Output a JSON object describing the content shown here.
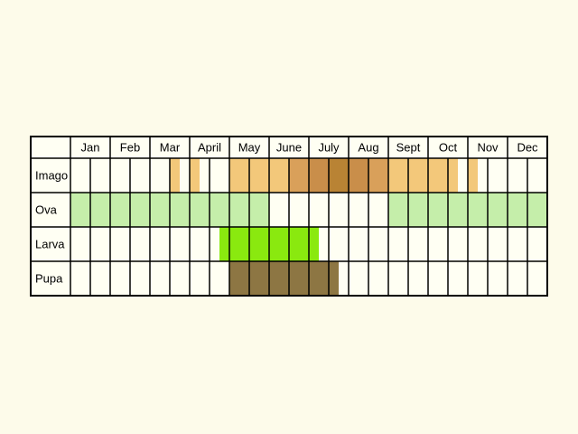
{
  "months": [
    "Jan",
    "Feb",
    "Mar",
    "April",
    "May",
    "June",
    "July",
    "Aug",
    "Sept",
    "Oct",
    "Nov",
    "Dec"
  ],
  "stages": [
    {
      "label": "Imago",
      "segments": [
        {
          "from": 5,
          "to": 5.5,
          "color": "#f3c87a"
        },
        {
          "from": 6,
          "to": 6.5,
          "color": "#f3c87a"
        },
        {
          "from": 8,
          "to": 11,
          "color": "#f3c87a"
        },
        {
          "from": 11,
          "to": 12,
          "color": "#d9a05a"
        },
        {
          "from": 12,
          "to": 13,
          "color": "#c98e4a"
        },
        {
          "from": 13,
          "to": 14,
          "color": "#b98334"
        },
        {
          "from": 14,
          "to": 15,
          "color": "#c98e4a"
        },
        {
          "from": 15,
          "to": 16,
          "color": "#d9a05a"
        },
        {
          "from": 16,
          "to": 19,
          "color": "#f3c87a"
        },
        {
          "from": 19,
          "to": 19.5,
          "color": "#f3c87a"
        },
        {
          "from": 20,
          "to": 20.5,
          "color": "#f3c87a"
        }
      ]
    },
    {
      "label": "Ova",
      "segments": [
        {
          "from": 0,
          "to": 10,
          "color": "#c5eeaa"
        },
        {
          "from": 16,
          "to": 24,
          "color": "#c5eeaa"
        }
      ]
    },
    {
      "label": "Larva",
      "segments": [
        {
          "from": 7.5,
          "to": 12.5,
          "color": "#8ae90f"
        }
      ]
    },
    {
      "label": "Pupa",
      "segments": [
        {
          "from": 8,
          "to": 13.5,
          "color": "#8d7643"
        }
      ]
    }
  ],
  "colors": {
    "background": "#fdfbea",
    "cell": "#fffff3",
    "grid": "#000000"
  }
}
